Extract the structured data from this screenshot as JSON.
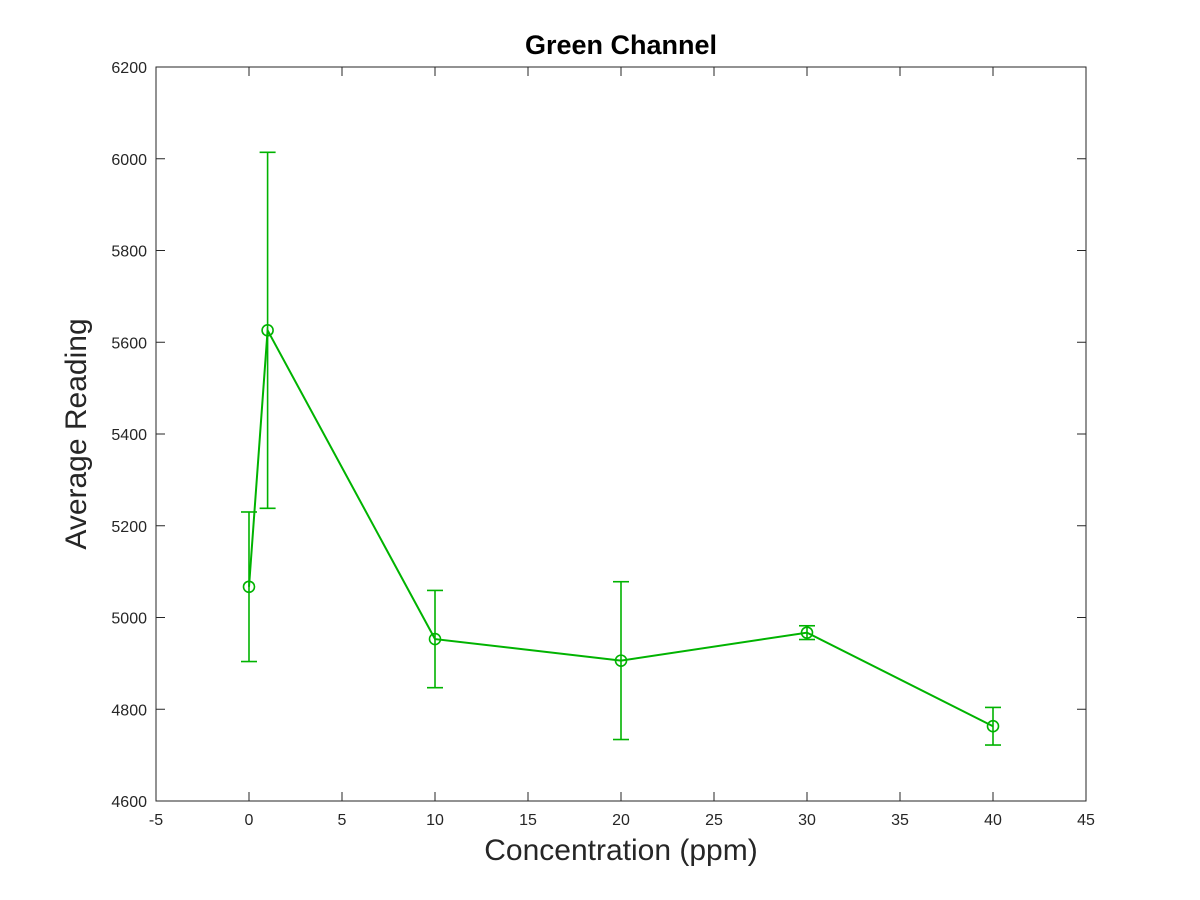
{
  "chart_data": {
    "type": "line",
    "title": "Green Channel",
    "xlabel": "Concentration (ppm)",
    "ylabel": "Average Reading",
    "xlim": [
      -5,
      45
    ],
    "ylim": [
      4600,
      6200
    ],
    "xticks": [
      -5,
      0,
      5,
      10,
      15,
      20,
      25,
      30,
      35,
      40,
      45
    ],
    "yticks": [
      4600,
      4800,
      5000,
      5200,
      5400,
      5600,
      5800,
      6000,
      6200
    ],
    "grid": false,
    "legend": "none",
    "series": [
      {
        "color": "#00b300",
        "marker": "circle",
        "x": [
          0,
          1,
          10,
          20,
          30,
          40
        ],
        "y": [
          5067,
          5626,
          4953,
          4906,
          4967,
          4763
        ],
        "error_lower": [
          163,
          388,
          106,
          172,
          15,
          41
        ],
        "error_upper": [
          163,
          388,
          106,
          172,
          15,
          41
        ]
      }
    ]
  },
  "colors": {
    "axis": "#262626",
    "background": "#ffffff"
  }
}
